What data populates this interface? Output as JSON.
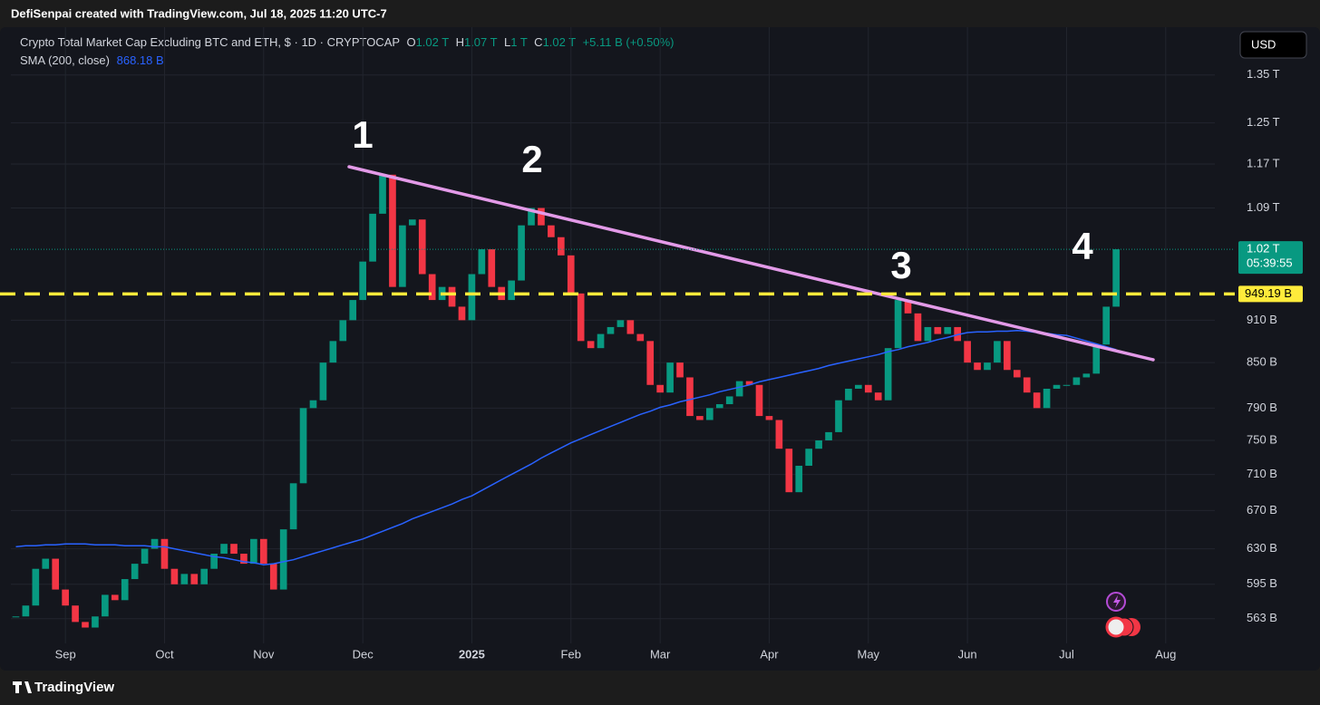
{
  "header": {
    "credit": "DefiSenpai created with TradingView.com, Jul 18, 2025 11:20 UTC-7",
    "currency": "USD",
    "brand": "TradingView"
  },
  "chart_data": {
    "type": "candlestick",
    "title": "Crypto Total Market Cap Excluding BTC and ETH, $ · 1D · CRYPTOCAP",
    "quote_labels": [
      "O",
      "H",
      "L",
      "C"
    ],
    "quote": [
      "1.02 T",
      "1.07 T",
      "1 T",
      "1.02 T"
    ],
    "change": "+5.11 B (+0.50%)",
    "up_color": "#089981",
    "down_color": "#f23645",
    "log_scale": true,
    "grid": true,
    "categories": [
      null,
      null,
      null,
      null,
      null,
      "Sep",
      null,
      null,
      null,
      null,
      null,
      null,
      null,
      null,
      null,
      "Oct",
      null,
      null,
      null,
      null,
      null,
      null,
      null,
      null,
      null,
      "Nov",
      null,
      null,
      null,
      null,
      null,
      null,
      null,
      null,
      null,
      "Dec",
      null,
      null,
      null,
      null,
      null,
      null,
      null,
      null,
      null,
      null,
      "2025",
      null,
      null,
      null,
      null,
      null,
      null,
      null,
      null,
      null,
      "Feb",
      null,
      null,
      null,
      null,
      null,
      null,
      null,
      null,
      "Mar",
      null,
      null,
      null,
      null,
      null,
      null,
      null,
      null,
      null,
      null,
      "Apr",
      null,
      null,
      null,
      null,
      null,
      null,
      null,
      null,
      null,
      "May",
      null,
      null,
      null,
      null,
      null,
      null,
      null,
      null,
      null,
      "Jun",
      null,
      null,
      null,
      null,
      null,
      null,
      null,
      null,
      null,
      "Jul",
      null,
      null,
      null,
      null,
      null,
      null,
      null,
      null,
      null,
      "Aug",
      null,
      null,
      null,
      null
    ],
    "values": [
      565,
      575,
      610,
      620,
      590,
      575,
      560,
      555,
      565,
      585,
      580,
      600,
      615,
      630,
      640,
      610,
      595,
      605,
      595,
      610,
      625,
      635,
      625,
      615,
      640,
      615,
      590,
      650,
      700,
      790,
      800,
      850,
      880,
      910,
      940,
      1000,
      1080,
      1150,
      960,
      1060,
      1070,
      980,
      940,
      960,
      930,
      910,
      980,
      1020,
      960,
      940,
      970,
      1060,
      1090,
      1060,
      1040,
      1010,
      950,
      880,
      870,
      890,
      900,
      910,
      890,
      880,
      820,
      810,
      850,
      830,
      780,
      775,
      790,
      795,
      805,
      825,
      820,
      780,
      775,
      740,
      690,
      720,
      740,
      750,
      760,
      800,
      815,
      820,
      810,
      800,
      870,
      940,
      920,
      880,
      900,
      890,
      900,
      880,
      850,
      840,
      850,
      880,
      840,
      830,
      810,
      790,
      815,
      820,
      820,
      830,
      835,
      875,
      930,
      1020,
      null,
      null,
      null,
      null,
      null,
      null,
      null,
      null,
      null
    ],
    "sma": {
      "name": "SMA (200, close)",
      "value_label": "868.18 B",
      "color": "#2962ff",
      "values": [
        632,
        633,
        633,
        634,
        634,
        635,
        635,
        635,
        634,
        634,
        634,
        633,
        633,
        633,
        632,
        632,
        630,
        628,
        626,
        624,
        622,
        621,
        619,
        617,
        616,
        614,
        615,
        617,
        619,
        622,
        625,
        628,
        631,
        634,
        637,
        640,
        644,
        648,
        652,
        656,
        661,
        665,
        669,
        673,
        677,
        682,
        686,
        692,
        698,
        704,
        710,
        716,
        722,
        729,
        735,
        741,
        747,
        752,
        757,
        762,
        767,
        772,
        777,
        782,
        786,
        791,
        794,
        798,
        801,
        804,
        807,
        811,
        814,
        817,
        820,
        824,
        827,
        830,
        833,
        836,
        839,
        842,
        846,
        849,
        852,
        855,
        858,
        861,
        865,
        868,
        872,
        875,
        878,
        882,
        885,
        889,
        892,
        893,
        893,
        894,
        894,
        895,
        894,
        892,
        891,
        889,
        888,
        884,
        880,
        876,
        872,
        868,
        null,
        null,
        null,
        null,
        null,
        null,
        null,
        null,
        null
      ]
    },
    "ylim": [
      545,
      1458
    ],
    "yticks": [
      {
        "value": 563,
        "label": "563 B"
      },
      {
        "value": 595,
        "label": "595 B"
      },
      {
        "value": 630,
        "label": "630 B"
      },
      {
        "value": 670,
        "label": "670 B"
      },
      {
        "value": 710,
        "label": "710 B"
      },
      {
        "value": 750,
        "label": "750 B"
      },
      {
        "value": 790,
        "label": "790 B"
      },
      {
        "value": 850,
        "label": "850 B"
      },
      {
        "value": 910,
        "label": "910 B"
      },
      {
        "value": 1090,
        "label": "1.09 T"
      },
      {
        "value": 1170,
        "label": "1.17 T"
      },
      {
        "value": 1250,
        "label": "1.25 T"
      },
      {
        "value": 1350,
        "label": "1.35 T"
      }
    ],
    "level": {
      "value": 949.19,
      "label": "949.19 B",
      "color": "#ffeb3b"
    },
    "last_price": {
      "value": 1020,
      "label": "1.02 T",
      "countdown": "05:39:55"
    },
    "annotations": [
      "1",
      "2",
      "3",
      "4"
    ]
  }
}
